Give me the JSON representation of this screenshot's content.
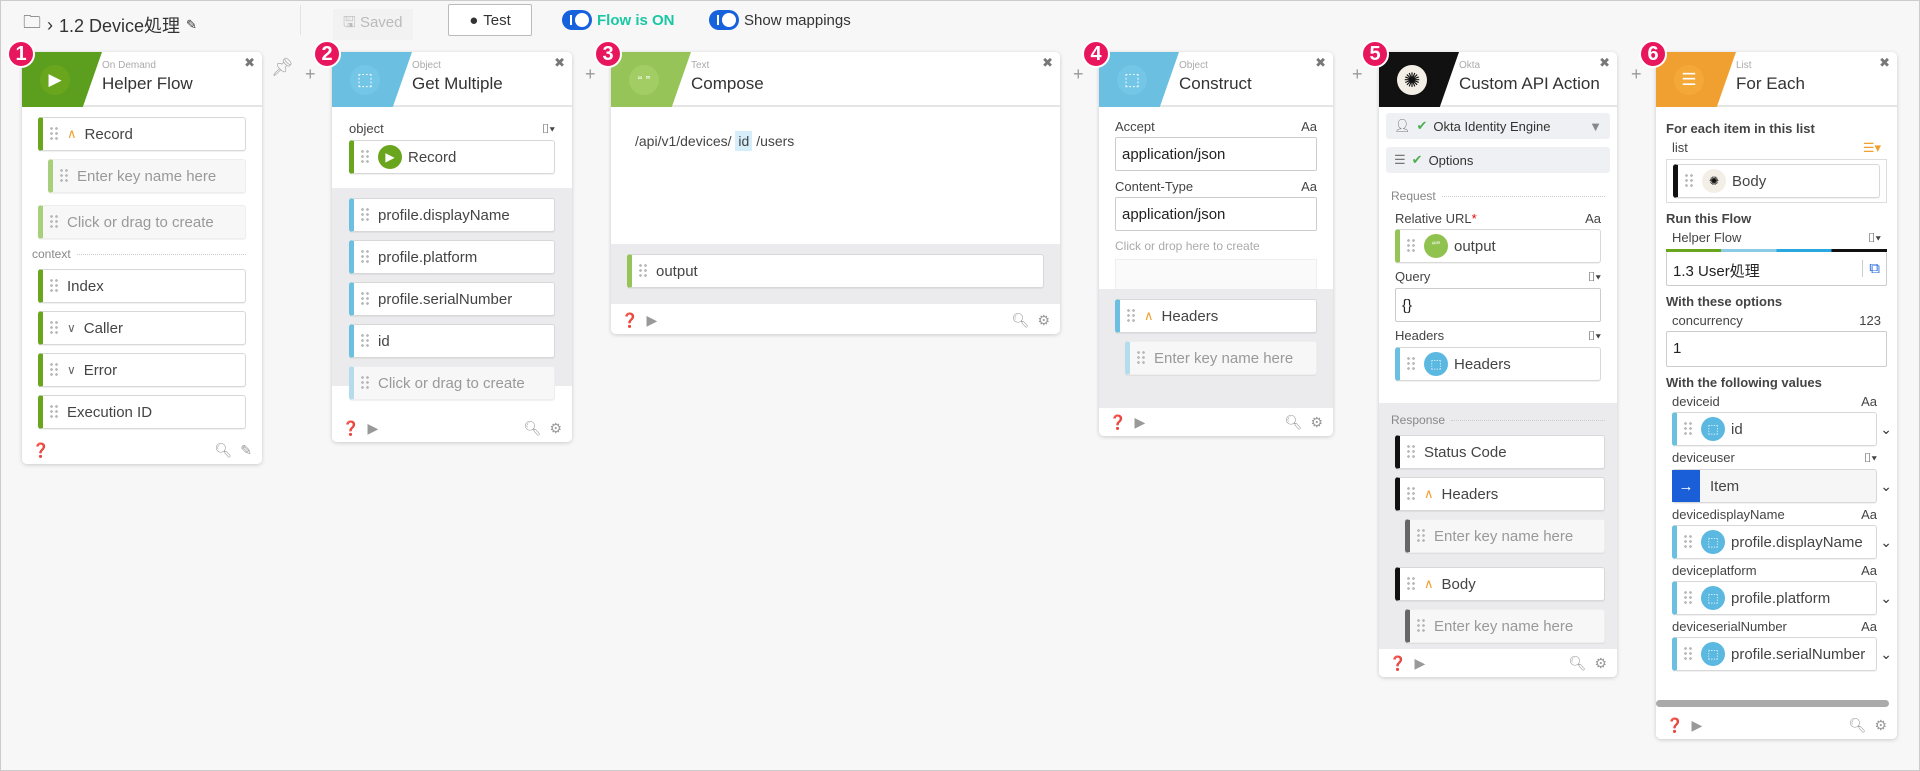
{
  "topbar": {
    "breadcrumb_title": "1.2 Device処理",
    "saved_label": "Saved",
    "test_label": "Test",
    "flow_toggle_label": "Flow is ON",
    "mappings_toggle_label": "Show mappings"
  },
  "colors": {
    "badge": "#e8175d",
    "helper_flow": "#5c9e1e",
    "object": "#6bbfe0",
    "text": "#97c459",
    "okta": "#111111",
    "list": "#f0a030",
    "toggle": "#1662dd",
    "flow_on_text": "#1ac7a5"
  },
  "cards": [
    {
      "badge": "1",
      "category": "On Demand",
      "title": "Helper Flow",
      "icon": "play-icon",
      "rows": [
        "Record",
        "Enter key name here",
        "Click or drag to create"
      ],
      "context_label": "context",
      "context_rows": [
        "Index",
        "Caller",
        "Error",
        "Execution ID"
      ]
    },
    {
      "badge": "2",
      "category": "Object",
      "title": "Get Multiple",
      "icon": "cube-icon",
      "object_label": "object",
      "object_value": "Record",
      "outputs": [
        "profile.displayName",
        "profile.platform",
        "profile.serialNumber",
        "id",
        "Click or drag to create"
      ]
    },
    {
      "badge": "3",
      "category": "Text",
      "title": "Compose",
      "icon": "quote-icon",
      "text_before": "/api/v1/devices/",
      "text_token": "id",
      "text_after": "/users",
      "output": "output"
    },
    {
      "badge": "4",
      "category": "Object",
      "title": "Construct",
      "icon": "cube-icon",
      "fields": [
        {
          "label": "Accept",
          "type": "Aa",
          "value": "application/json"
        },
        {
          "label": "Content-Type",
          "type": "Aa",
          "value": "application/json"
        }
      ],
      "create_hint": "Click or drop here to create",
      "output": "Headers",
      "output_placeholder": "Enter key name here"
    },
    {
      "badge": "5",
      "category": "Okta",
      "title": "Custom API Action",
      "icon": "okta-icon",
      "connection": "Okta Identity Engine",
      "options": "Options",
      "request_label": "Request",
      "relative_url_label": "Relative URL",
      "relative_url_required": "*",
      "relative_url_value": "output",
      "query_label": "Query",
      "query_value": "{}",
      "headers_label": "Headers",
      "headers_value": "Headers",
      "response_label": "Response",
      "response_rows": [
        "Status Code",
        "Headers",
        "Enter key name here",
        "Body",
        "Enter key name here"
      ],
      "type_label": "Aa"
    },
    {
      "badge": "6",
      "category": "List",
      "title": "For Each",
      "icon": "list-icon",
      "section1": "For each item in this list",
      "list_label": "list",
      "list_value": "Body",
      "section2": "Run this Flow",
      "flow_label": "Helper Flow",
      "flow_value": "1.3 User処理",
      "section3": "With these options",
      "concurrency_label": "concurrency",
      "concurrency_type": "123",
      "concurrency_value": "1",
      "section4": "With the following values",
      "values": [
        {
          "label": "deviceid",
          "type": "Aa",
          "value": "id"
        },
        {
          "label": "deviceuser",
          "type": "",
          "value": "Item"
        },
        {
          "label": "devicedisplayName",
          "type": "Aa",
          "value": "profile.displayName"
        },
        {
          "label": "deviceplatform",
          "type": "Aa",
          "value": "profile.platform"
        },
        {
          "label": "deviceserialNumber",
          "type": "Aa",
          "value": "profile.serialNumber"
        }
      ]
    }
  ]
}
